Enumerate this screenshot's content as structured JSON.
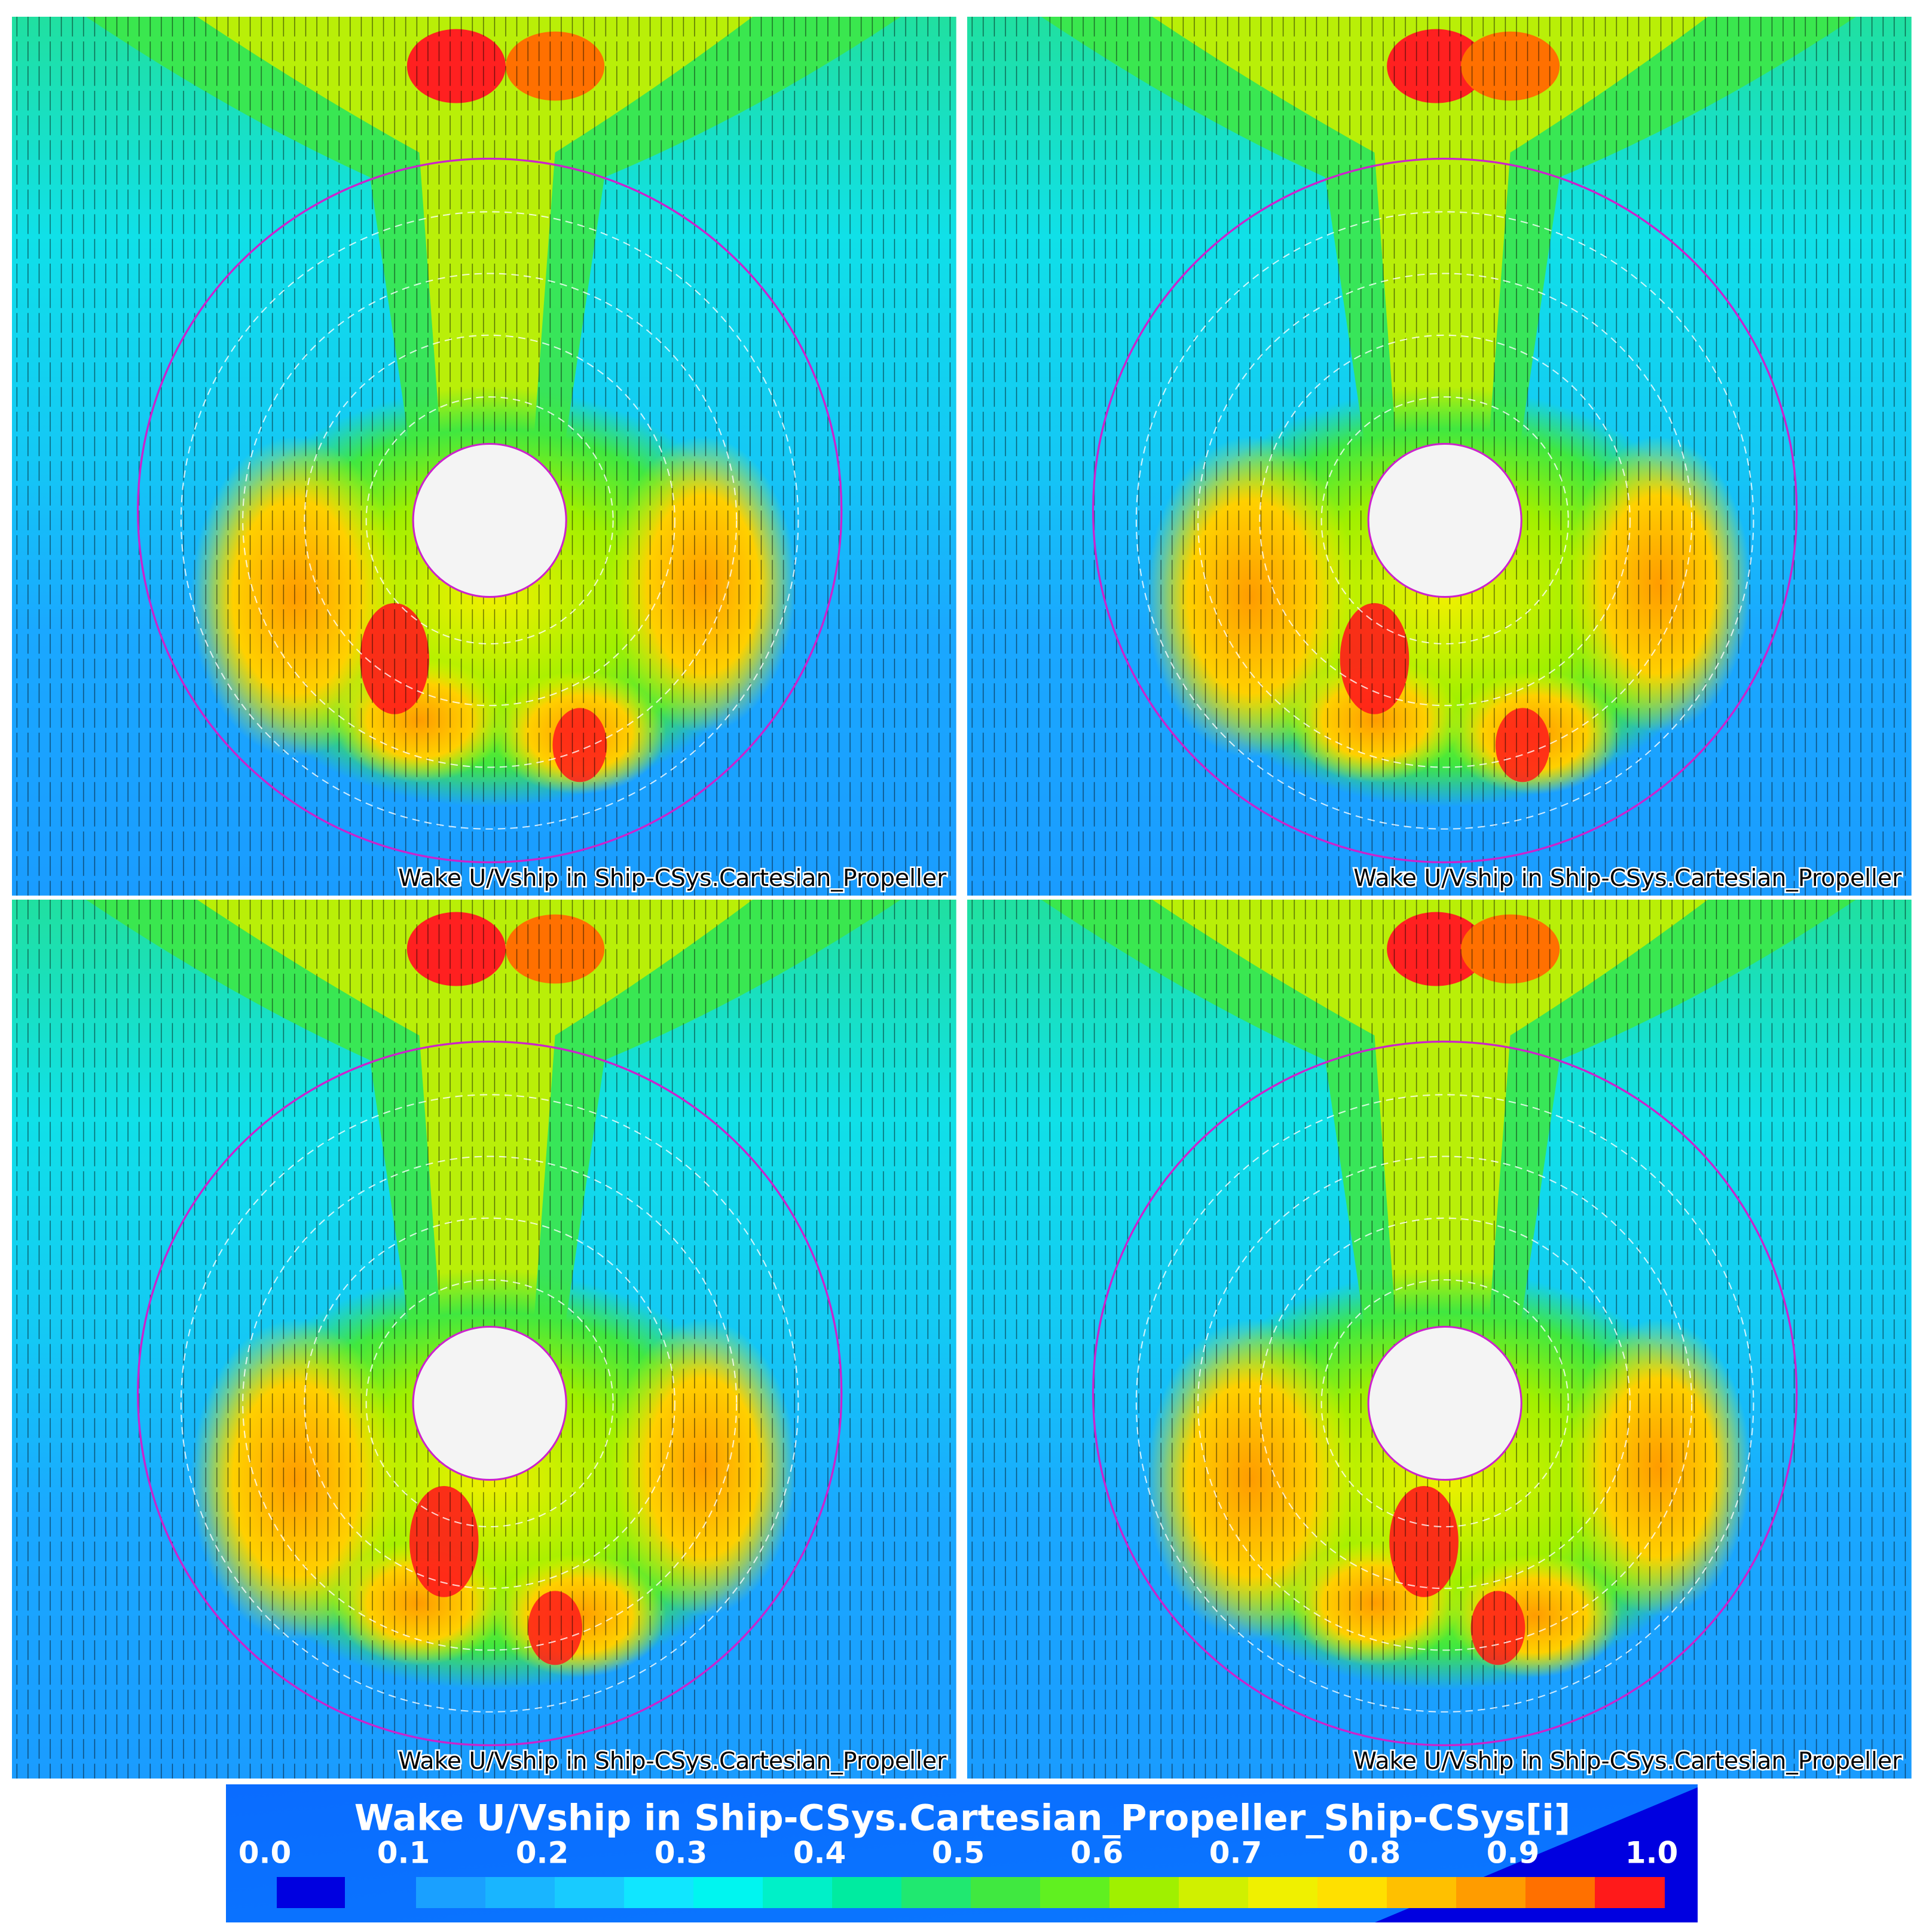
{
  "panels": [
    {
      "label": "Wake U/Vship in Ship-CSys.Cartesian_Propeller"
    },
    {
      "label": "Wake U/Vship in Ship-CSys.Cartesian_Propeller"
    },
    {
      "label": "Wake U/Vship in Ship-CSys.Cartesian_Propeller"
    },
    {
      "label": "Wake U/Vship in Ship-CSys.Cartesian_Propeller"
    }
  ],
  "colorbar": {
    "title": "Wake U/Vship in Ship-CSys.Cartesian_Propeller_Ship-CSys[i]",
    "ticks": [
      "0.0",
      "0.1",
      "0.2",
      "0.3",
      "0.4",
      "0.5",
      "0.6",
      "0.7",
      "0.8",
      "0.9",
      "1.0"
    ]
  }
}
